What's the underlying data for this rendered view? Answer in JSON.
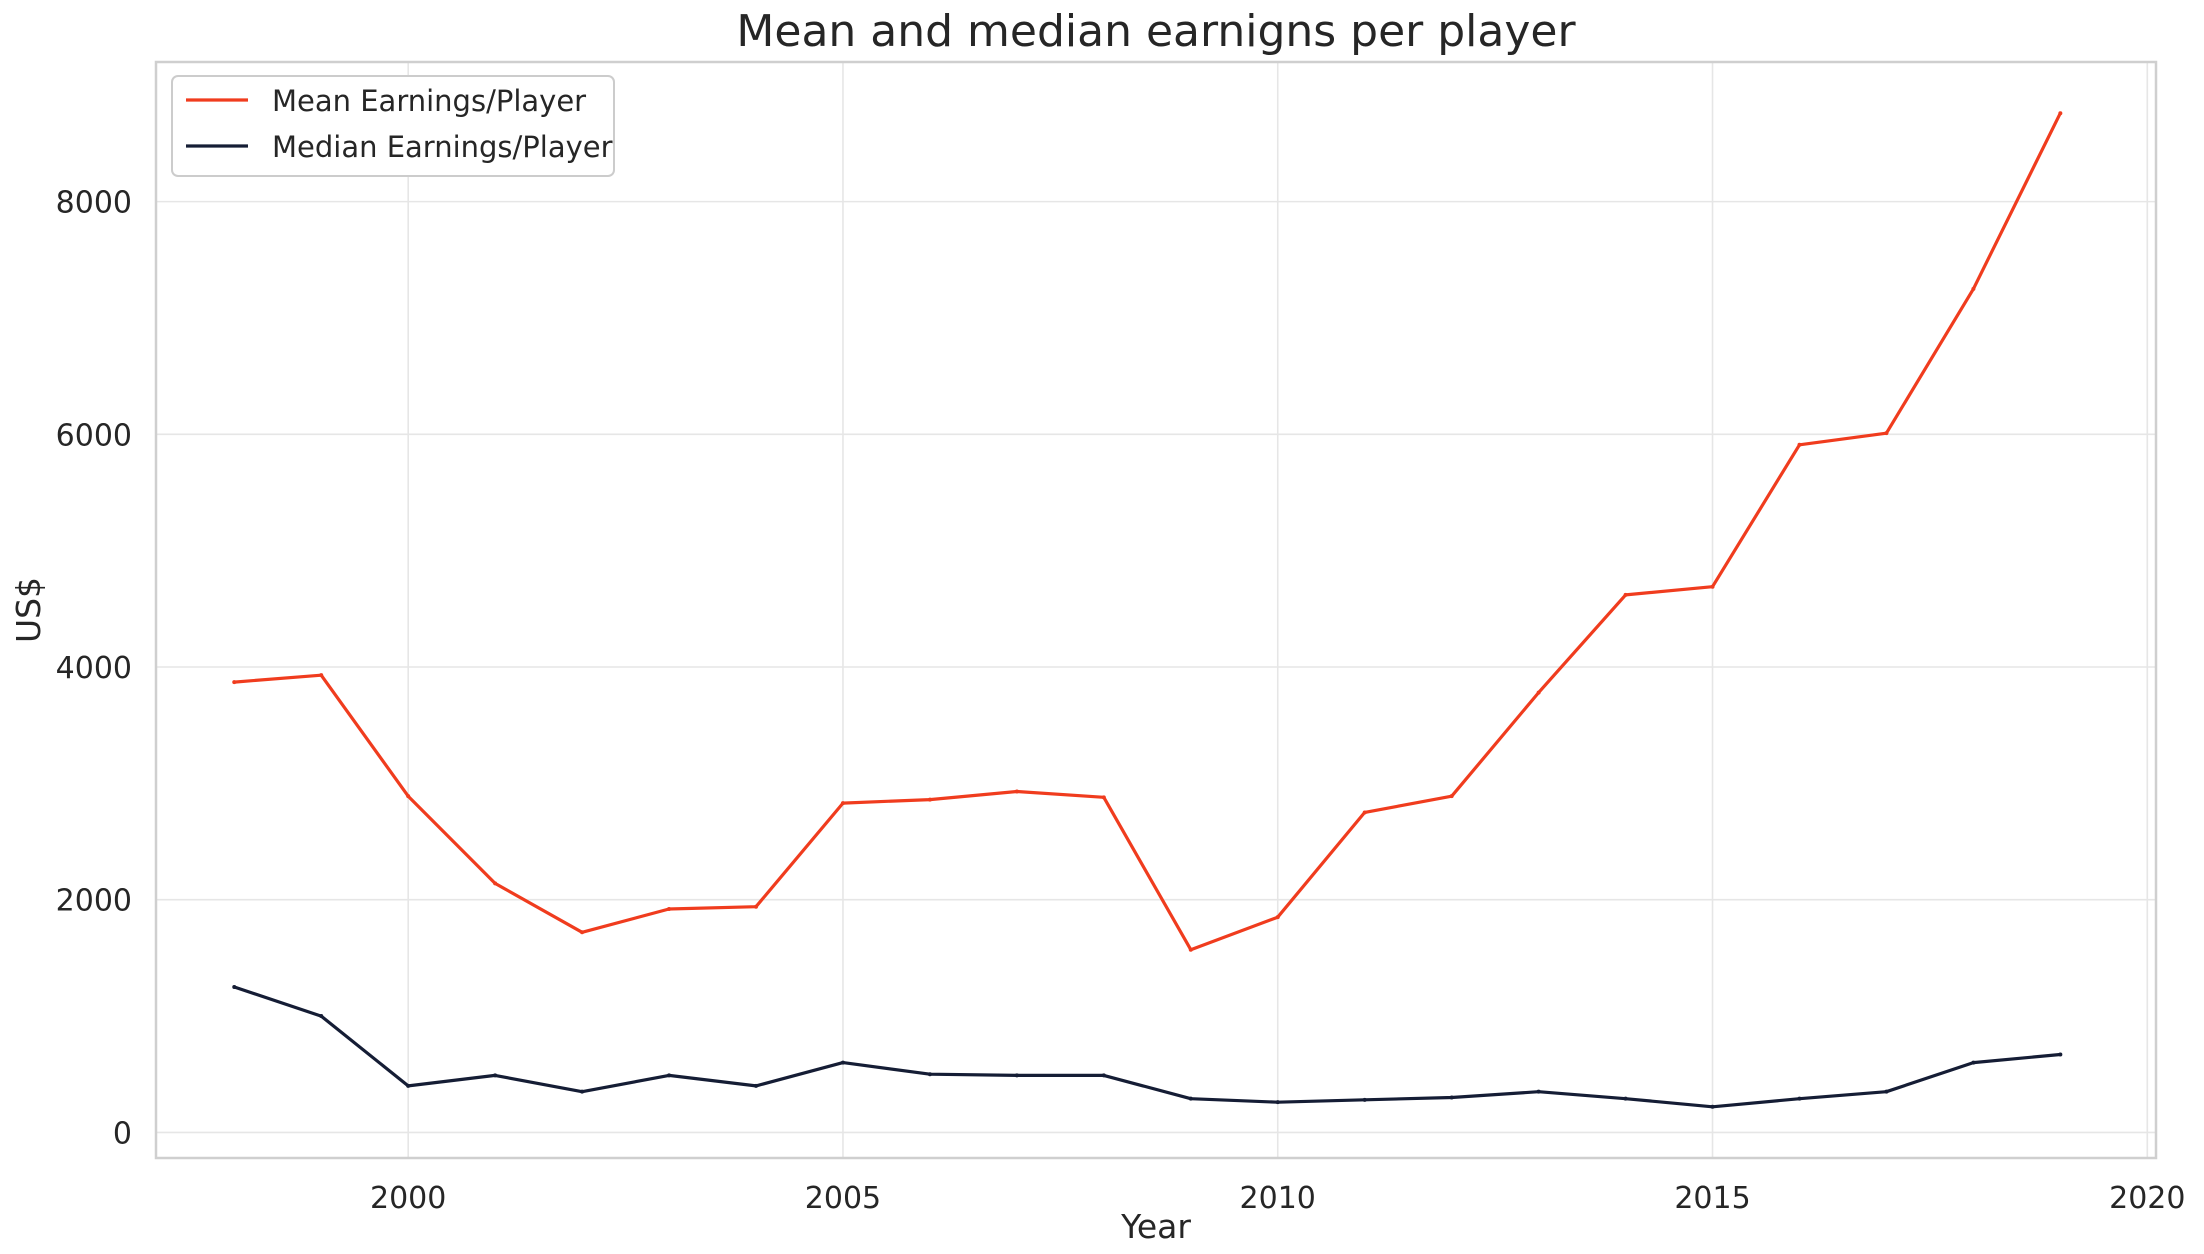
{
  "chart_data": {
    "type": "line",
    "title": "Mean and median earnigns per player",
    "xlabel": "Year",
    "ylabel": "US$",
    "xlim": [
      1997.1,
      2020.1
    ],
    "ylim": [
      -220,
      9200
    ],
    "xticks": [
      2000,
      2005,
      2010,
      2015,
      2020
    ],
    "yticks": [
      0,
      2000,
      4000,
      6000,
      8000
    ],
    "grid": true,
    "legend_position": "top-left",
    "x": [
      1998,
      1999,
      2000,
      2001,
      2002,
      2003,
      2004,
      2005,
      2006,
      2007,
      2008,
      2009,
      2010,
      2011,
      2012,
      2013,
      2014,
      2015,
      2016,
      2017,
      2018,
      2019
    ],
    "series": [
      {
        "name": "Mean Earnings/Player",
        "color": "#f03c1e",
        "values": [
          3870,
          3930,
          2890,
          2140,
          1720,
          1920,
          1940,
          2830,
          2860,
          2930,
          2880,
          1570,
          1850,
          2750,
          2890,
          3780,
          4620,
          4690,
          5910,
          6010,
          7250,
          8760
        ]
      },
      {
        "name": "Median Earnings/Player",
        "color": "#151d35",
        "values": [
          1250,
          1000,
          400,
          490,
          350,
          490,
          400,
          600,
          500,
          490,
          490,
          290,
          260,
          280,
          300,
          350,
          290,
          220,
          290,
          350,
          600,
          670
        ]
      }
    ]
  }
}
